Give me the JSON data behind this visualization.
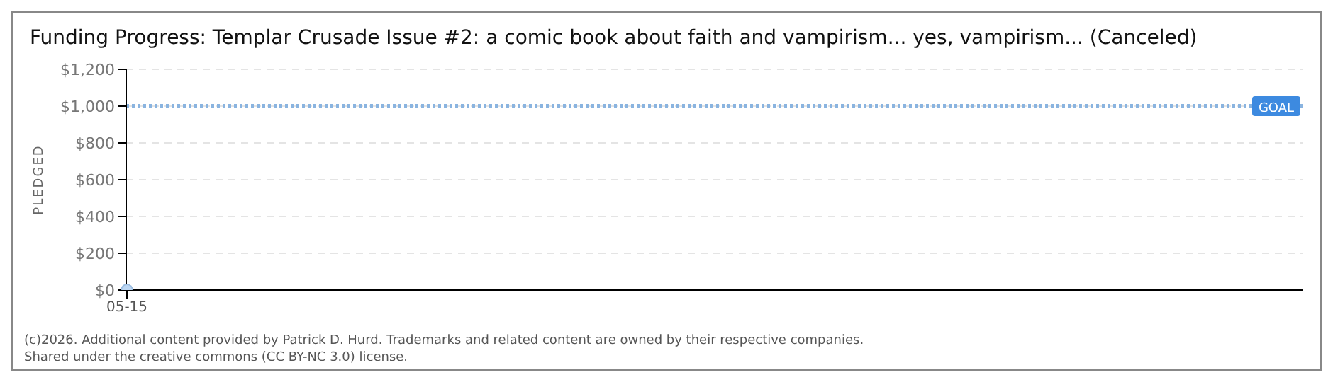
{
  "chart_data": {
    "type": "line",
    "title": "Funding Progress: Templar Crusade Issue #2: a comic book about faith and vampirism... yes, vampirism... (Canceled)",
    "ylabel": "PLEDGED",
    "categories": [
      "05-15"
    ],
    "series": [
      {
        "color": "#bcd6f2",
        "values": [
          0
        ]
      }
    ],
    "ylim": [
      0,
      1200
    ],
    "yticks": [
      {
        "value": 0,
        "label": "$0"
      },
      {
        "value": 200,
        "label": "$200"
      },
      {
        "value": 400,
        "label": "$400"
      },
      {
        "value": 600,
        "label": "$600"
      },
      {
        "value": 800,
        "label": "$800"
      },
      {
        "value": 1000,
        "label": "$1,000"
      },
      {
        "value": 1200,
        "label": "$1,200"
      }
    ],
    "grid": "y",
    "marker": "circle",
    "ref_lines": [
      {
        "axis": "y",
        "value": 1000,
        "label": "GOAL",
        "color": "#8ab4e0",
        "line_style": "dotted"
      }
    ],
    "annotations": [
      "(c)2026. Additional content provided by Patrick D. Hurd. Trademarks and related content are owned by their respective companies.",
      "Shared under the creative commons (CC BY-NC 3.0) license."
    ]
  }
}
